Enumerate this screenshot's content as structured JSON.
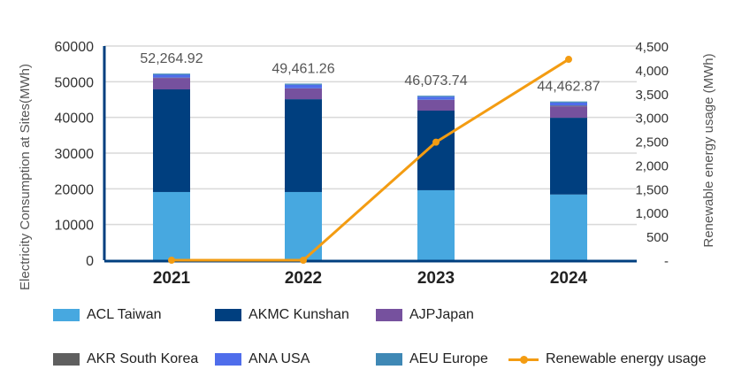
{
  "chart_data": {
    "type": "bar",
    "categories": [
      "2021",
      "2022",
      "2023",
      "2024"
    ],
    "series": [
      {
        "name": "ACL Taiwan",
        "color": "#47A8E0",
        "values": [
          19100,
          19100,
          19600,
          18400
        ]
      },
      {
        "name": "AKMC Kunshan",
        "color": "#003F7F",
        "values": [
          28750,
          26000,
          22300,
          21500
        ]
      },
      {
        "name": "AJPJapan",
        "color": "#76519E",
        "values": [
          3200,
          3000,
          3000,
          3200
        ]
      },
      {
        "name": "AKR South Korea",
        "color": "#5F5F5F",
        "values": [
          100,
          60,
          50,
          200
        ]
      },
      {
        "name": "ANA USA",
        "color": "#4F6DEB",
        "values": [
          800,
          1000,
          850,
          860
        ]
      },
      {
        "name": "AEU Europe",
        "color": "#3F88B5",
        "values": [
          314.92,
          301.26,
          273.74,
          302.87
        ]
      }
    ],
    "line_series": {
      "name": "Renewable energy usage",
      "color": "#F39C12",
      "values": [
        0,
        0,
        2480,
        4220
      ]
    },
    "totals": [
      "52,264.92",
      "49,461.26",
      "46,073.74",
      "44,462.87"
    ],
    "ylabel": "Electricity Consumption at Sites(MWh)",
    "y2label": "Renewable energy usage (MWh)",
    "ylim": [
      0,
      60000
    ],
    "y_ticks": [
      "0",
      "10000",
      "20000",
      "30000",
      "40000",
      "50000",
      "60000"
    ],
    "y2lim": [
      0,
      4500
    ],
    "y2_ticks": [
      "-",
      "500",
      "1,000",
      "1,500",
      "2,000",
      "2,500",
      "3,000",
      "3,500",
      "4,000",
      "4,500"
    ],
    "grid": true,
    "legend_position": "bottom"
  }
}
